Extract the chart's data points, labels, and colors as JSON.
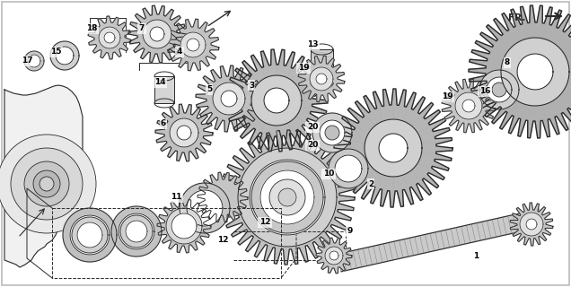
{
  "bg": "#ffffff",
  "border": "#bbbbbb",
  "line_color": "#2a2a2a",
  "gray_fill": "#c8c8c8",
  "light_gray": "#e0e0e0",
  "dark_gray": "#888888",
  "fr_text": "FR.",
  "labels": [
    [
      "1",
      530,
      268
    ],
    [
      "2",
      438,
      178
    ],
    [
      "3",
      310,
      95
    ],
    [
      "4",
      205,
      60
    ],
    [
      "5",
      258,
      115
    ],
    [
      "6",
      198,
      148
    ],
    [
      "7",
      222,
      35
    ],
    [
      "8",
      600,
      78
    ],
    [
      "9",
      390,
      255
    ],
    [
      "10",
      375,
      195
    ],
    [
      "11",
      198,
      222
    ],
    [
      "12",
      248,
      265
    ],
    [
      "12",
      315,
      250
    ],
    [
      "13",
      348,
      62
    ],
    [
      "14",
      188,
      100
    ],
    [
      "15",
      68,
      65
    ],
    [
      "16",
      558,
      100
    ],
    [
      "17",
      30,
      72
    ],
    [
      "18",
      110,
      38
    ],
    [
      "19",
      365,
      78
    ],
    [
      "19",
      510,
      115
    ],
    [
      "20",
      328,
      170
    ],
    [
      "20",
      362,
      145
    ]
  ]
}
